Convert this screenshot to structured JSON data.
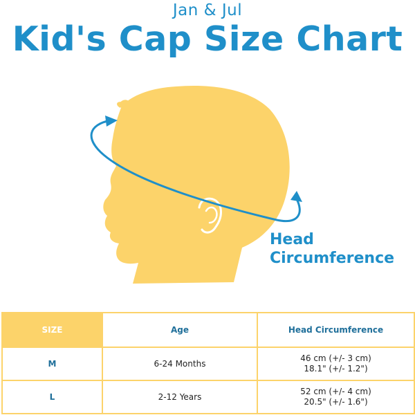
{
  "brand": "Jan & Jul",
  "title": "Kid's Cap Size Chart",
  "illustration": {
    "label_line1": "Head",
    "label_line2": "Circumference",
    "colors": {
      "silhouette": "#fcd36a",
      "arrow": "#1f8fc9",
      "ear_lines": "#ffffff"
    }
  },
  "table": {
    "headers": {
      "size": "SIZE",
      "age": "Age",
      "circumference": "Head Circumference"
    },
    "rows": [
      {
        "size": "M",
        "age": "6-24 Months",
        "cm": "46 cm (+/- 3 cm)",
        "inches": "18.1\" (+/- 1.2\")"
      },
      {
        "size": "L",
        "age": "2-12 Years",
        "cm": "52 cm (+/- 4 cm)",
        "inches": "20.5\" (+/- 1.6\")"
      }
    ],
    "colors": {
      "header_fill": "#fcd36a",
      "border": "#fcd36a",
      "header_text": "#1f6f9a"
    }
  }
}
